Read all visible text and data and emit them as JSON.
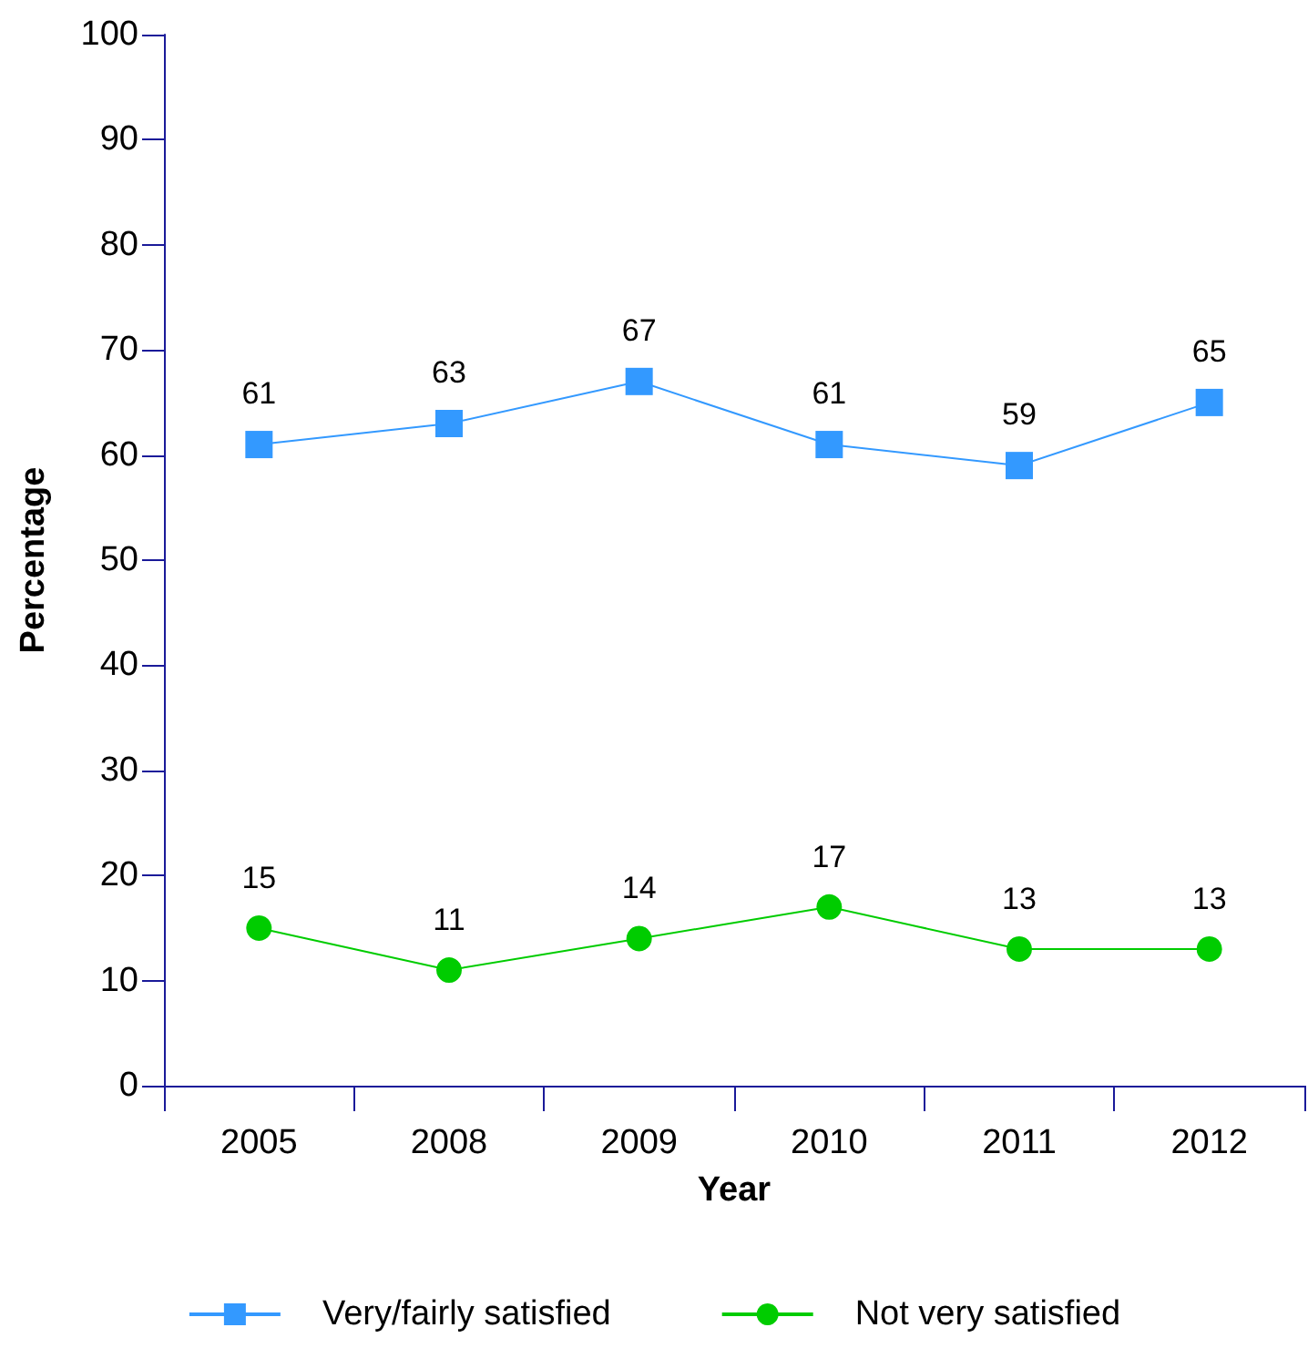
{
  "chart_data": {
    "type": "line",
    "xlabel": "Year",
    "ylabel": "Percentage",
    "categories": [
      "2005",
      "2008",
      "2009",
      "2010",
      "2011",
      "2012"
    ],
    "series": [
      {
        "name": "Very/fairly satisfied",
        "color": "#3399ff",
        "marker": "square",
        "values": [
          61,
          63,
          67,
          61,
          59,
          65
        ]
      },
      {
        "name": "Not very satisfied",
        "color": "#00cc00",
        "marker": "circle",
        "values": [
          15,
          11,
          14,
          17,
          13,
          13
        ]
      }
    ],
    "ylim": [
      0,
      100
    ],
    "yticks": [
      0,
      10,
      20,
      30,
      40,
      50,
      60,
      70,
      80,
      90,
      100
    ],
    "data_labels": true,
    "grid": false,
    "legend": "bottom",
    "line_style": "solid"
  }
}
